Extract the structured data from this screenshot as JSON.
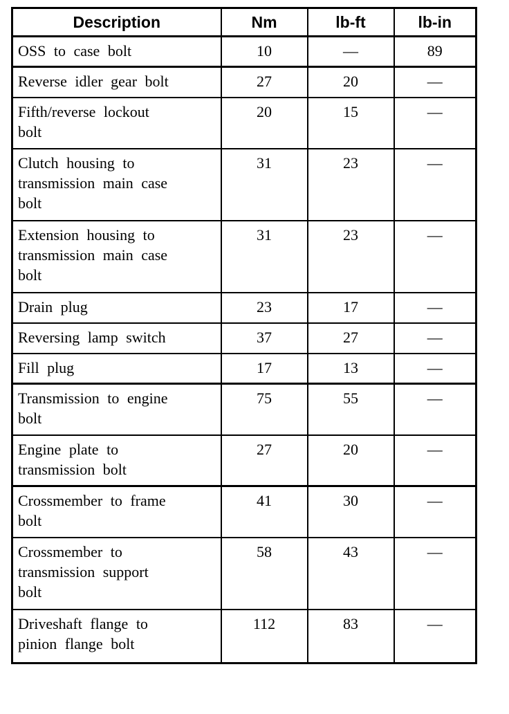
{
  "table": {
    "title_semantic": "transmission-torque-specifications",
    "colors": {
      "background": "#ffffff",
      "border": "#000000",
      "text": "#000000"
    },
    "headers": {
      "description": "Description",
      "nm": "Nm",
      "lb_ft": "lb-ft",
      "lb_in": "lb-in"
    },
    "rows": [
      {
        "description": "OSS to case bolt",
        "nm": "10",
        "lb_ft": "—",
        "lb_in": "89"
      },
      {
        "description": "Reverse idler gear bolt",
        "nm": "27",
        "lb_ft": "20",
        "lb_in": "—"
      },
      {
        "description": "Fifth/reverse lockout\nbolt",
        "nm": "20",
        "lb_ft": "15",
        "lb_in": "—"
      },
      {
        "description": "Clutch housing to\ntransmission main case\nbolt",
        "nm": "31",
        "lb_ft": "23",
        "lb_in": "—"
      },
      {
        "description": "Extension housing to\ntransmission main case\nbolt",
        "nm": "31",
        "lb_ft": "23",
        "lb_in": "—"
      },
      {
        "description": "Drain plug",
        "nm": "23",
        "lb_ft": "17",
        "lb_in": "—"
      },
      {
        "description": "Reversing lamp switch",
        "nm": "37",
        "lb_ft": "27",
        "lb_in": "—"
      },
      {
        "description": "Fill plug",
        "nm": "17",
        "lb_ft": "13",
        "lb_in": "—"
      },
      {
        "description": "Transmission to engine\nbolt",
        "nm": "75",
        "lb_ft": "55",
        "lb_in": "—"
      },
      {
        "description": "Engine plate to\ntransmission bolt",
        "nm": "27",
        "lb_ft": "20",
        "lb_in": "—"
      },
      {
        "description": "Crossmember to frame\nbolt",
        "nm": "41",
        "lb_ft": "30",
        "lb_in": "—"
      },
      {
        "description": "Crossmember to\ntransmission support\nbolt",
        "nm": "58",
        "lb_ft": "43",
        "lb_in": "—"
      },
      {
        "description": "Driveshaft flange to\npinion flange bolt",
        "nm": "112",
        "lb_ft": "83",
        "lb_in": "—"
      }
    ]
  }
}
